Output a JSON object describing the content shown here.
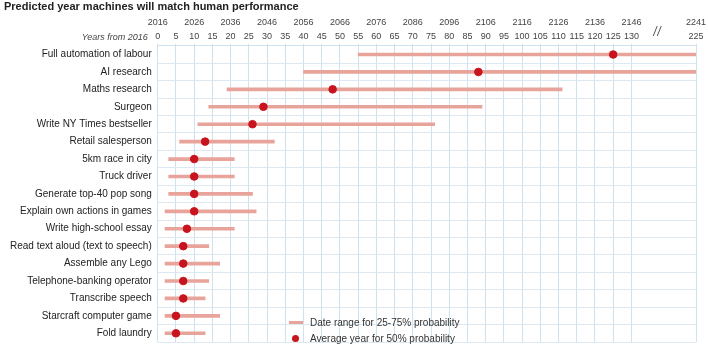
{
  "chart_data": {
    "type": "bar",
    "orientation": "horizontal",
    "title": "Predicted year machines will match human performance",
    "x_label": "Years from 2016",
    "categories": [
      "Full automation of labour",
      "AI research",
      "Maths research",
      "Surgeon",
      "Write NY Times bestseller",
      "Retail salesperson",
      "5km race in city",
      "Truck driver",
      "Generate top-40 pop song",
      "Explain own actions in games",
      "Write high-school essay",
      "Read text aloud (text to speech)",
      "Assemble any Lego",
      "Telephone-banking operator",
      "Transcribe speech",
      "Starcraft computer game",
      "Fold laundry"
    ],
    "series": [
      {
        "name": "Date range for 25-75% probability",
        "type": "bar",
        "color": "#e8a39b",
        "line_style": "solid",
        "values": [
          [
            55,
            225
          ],
          [
            40,
            225
          ],
          [
            19,
            111
          ],
          [
            14,
            89
          ],
          [
            11,
            76
          ],
          [
            6,
            32
          ],
          [
            3,
            21
          ],
          [
            3,
            21
          ],
          [
            3,
            26
          ],
          [
            2,
            27
          ],
          [
            2,
            21
          ],
          [
            2,
            14
          ],
          [
            2,
            17
          ],
          [
            2,
            14
          ],
          [
            2,
            13
          ],
          [
            2,
            17
          ],
          [
            2,
            13
          ]
        ]
      },
      {
        "name": "Average year for 50% probability",
        "type": "scatter",
        "color": "#c8141f",
        "marker": "circle",
        "values": [
          125,
          88,
          48,
          29,
          26,
          13,
          10,
          10,
          10,
          10,
          8,
          7,
          7,
          7,
          7,
          5,
          5
        ]
      }
    ],
    "xlim": [
      0,
      225
    ],
    "xticks": [
      0,
      5,
      10,
      15,
      20,
      25,
      30,
      35,
      40,
      45,
      50,
      55,
      60,
      65,
      70,
      75,
      80,
      85,
      90,
      95,
      100,
      105,
      110,
      115,
      120,
      125,
      130,
      225
    ],
    "xbreak": 130,
    "x2ticks": [
      {
        "value": 0,
        "label": "2016"
      },
      {
        "value": 10,
        "label": "2026"
      },
      {
        "value": 20,
        "label": "2036"
      },
      {
        "value": 30,
        "label": "2046"
      },
      {
        "value": 40,
        "label": "2056"
      },
      {
        "value": 50,
        "label": "2066"
      },
      {
        "value": 60,
        "label": "2076"
      },
      {
        "value": 70,
        "label": "2086"
      },
      {
        "value": 80,
        "label": "2096"
      },
      {
        "value": 90,
        "label": "2106"
      },
      {
        "value": 100,
        "label": "2116"
      },
      {
        "value": 110,
        "label": "2126"
      },
      {
        "value": 120,
        "label": "2136"
      },
      {
        "value": 130,
        "label": "2146"
      },
      {
        "value": 225,
        "label": "2241"
      }
    ],
    "grid": true,
    "legend": "bottom"
  }
}
